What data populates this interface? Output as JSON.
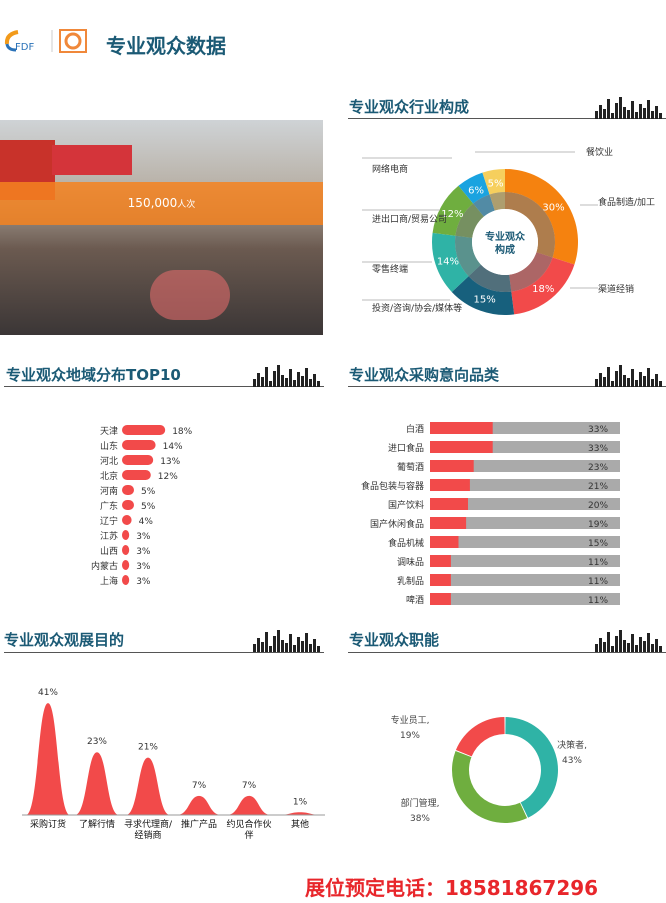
{
  "header": {
    "logo_text": "FDF",
    "title": "专业观众数据"
  },
  "photo": {
    "stat_value": "150,000",
    "stat_unit": "人次"
  },
  "sections": {
    "industry": "专业观众行业构成",
    "region": "专业观众地域分布TOP10",
    "purchase": "专业观众采购意向品类",
    "purpose": "专业观众观展目的",
    "role": "专业观众职能"
  },
  "footer": {
    "label": "展位预定电话：",
    "phone": "18581867296"
  },
  "chart_data": [
    {
      "id": "industry",
      "type": "pie",
      "center_label": [
        "专业观众",
        "构成"
      ],
      "categories": [
        "食品制造/加工",
        "渠道经销",
        "投资/咨询/协会/媒体等",
        "零售终端",
        "进出口商/贸易公司",
        "网络电商",
        "餐饮业"
      ],
      "values": [
        30,
        18,
        15,
        14,
        12,
        6,
        5
      ],
      "value_labels": [
        "30%",
        "18%",
        "15%",
        "14%",
        "12%",
        "6%",
        "5%"
      ],
      "colors": [
        "#f5820f",
        "#f24a4a",
        "#17607d",
        "#2fb3a6",
        "#6fae3f",
        "#1aa3e0",
        "#f6cf5d"
      ]
    },
    {
      "id": "region",
      "type": "bar",
      "orientation": "horizontal",
      "color": "#f24a4a",
      "categories": [
        "天津",
        "山东",
        "河北",
        "北京",
        "河南",
        "广东",
        "辽宁",
        "江苏",
        "山西",
        "内蒙古",
        "上海"
      ],
      "values": [
        18,
        14,
        13,
        12,
        5,
        5,
        4,
        3,
        3,
        3,
        3
      ],
      "value_labels": [
        "18%",
        "14%",
        "13%",
        "12%",
        "5%",
        "5%",
        "4%",
        "3%",
        "3%",
        "3%",
        "3%"
      ]
    },
    {
      "id": "purchase",
      "type": "bar",
      "orientation": "horizontal",
      "color": "#f24a4a",
      "track_color": "#aaaaaa",
      "xlim": [
        0,
        100
      ],
      "categories": [
        "白酒",
        "进口食品",
        "葡萄酒",
        "食品包装与容器",
        "国产饮料",
        "国产休闲食品",
        "食品机械",
        "调味品",
        "乳制品",
        "啤酒"
      ],
      "values": [
        33,
        33,
        23,
        21,
        20,
        19,
        15,
        11,
        11,
        11
      ],
      "value_labels": [
        "33%",
        "33%",
        "23%",
        "21%",
        "20%",
        "19%",
        "15%",
        "11%",
        "11%",
        "11%"
      ]
    },
    {
      "id": "purpose",
      "type": "area",
      "color": "#f24a4a",
      "categories": [
        "采购订货",
        "了解行情",
        "寻求代理商/\n经销商",
        "推广产品",
        "约见合作伙\n伴",
        "其他"
      ],
      "values": [
        41,
        23,
        21,
        7,
        7,
        1
      ],
      "value_labels": [
        "41%",
        "23%",
        "21%",
        "7%",
        "7%",
        "1%"
      ]
    },
    {
      "id": "role",
      "type": "pie",
      "donut": true,
      "categories": [
        "决策者",
        "部门管理",
        "专业员工"
      ],
      "values": [
        43,
        38,
        19
      ],
      "value_labels": [
        "43%",
        "38%",
        "19%"
      ],
      "colors": [
        "#2fb3a6",
        "#6fae3f",
        "#f24a4a"
      ]
    }
  ]
}
